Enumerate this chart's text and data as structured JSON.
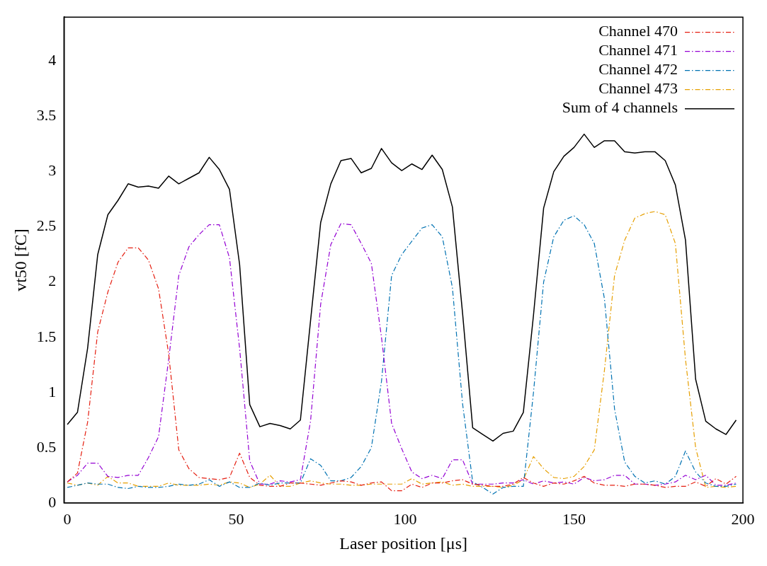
{
  "chart_data": {
    "type": "line",
    "xlabel": "Laser position [μs]",
    "ylabel": "vt50 [fC]",
    "x": [
      0,
      3,
      6,
      9,
      12,
      15,
      18,
      21,
      24,
      27,
      30,
      33,
      36,
      39,
      42,
      45,
      48,
      51,
      54,
      57,
      60,
      63,
      66,
      69,
      72,
      75,
      78,
      81,
      84,
      87,
      90,
      93,
      96,
      99,
      102,
      105,
      108,
      111,
      114,
      117,
      120,
      123,
      126,
      129,
      132,
      135,
      138,
      141,
      144,
      147,
      150,
      153,
      156,
      159,
      162,
      165,
      168,
      171,
      174,
      177,
      180,
      183,
      186,
      189,
      192,
      195,
      198
    ],
    "xlim": [
      -1,
      200
    ],
    "xticks": [
      0,
      50,
      100,
      150,
      200
    ],
    "ylim": [
      0,
      4.4
    ],
    "yticks": [
      0,
      0.5,
      1,
      1.5,
      2,
      2.5,
      3,
      3.5,
      4
    ],
    "legend": "top right",
    "marker": "none",
    "series": [
      {
        "name": "Channel 470",
        "color": "#e51e10",
        "line_style": "dashed",
        "values": [
          0.19,
          0.27,
          0.73,
          1.55,
          1.91,
          2.18,
          2.31,
          2.31,
          2.2,
          1.94,
          1.35,
          0.48,
          0.31,
          0.23,
          0.22,
          0.21,
          0.23,
          0.45,
          0.23,
          0.16,
          0.15,
          0.15,
          0.18,
          0.18,
          0.17,
          0.16,
          0.18,
          0.2,
          0.19,
          0.16,
          0.18,
          0.19,
          0.11,
          0.11,
          0.17,
          0.14,
          0.18,
          0.18,
          0.2,
          0.21,
          0.17,
          0.16,
          0.15,
          0.15,
          0.17,
          0.23,
          0.18,
          0.15,
          0.18,
          0.17,
          0.2,
          0.24,
          0.18,
          0.16,
          0.16,
          0.15,
          0.17,
          0.17,
          0.16,
          0.14,
          0.15,
          0.15,
          0.19,
          0.15,
          0.22,
          0.17,
          0.24
        ]
      },
      {
        "name": "Channel 471",
        "color": "#9400d3",
        "line_style": "dashed",
        "values": [
          0.19,
          0.25,
          0.36,
          0.36,
          0.24,
          0.23,
          0.25,
          0.25,
          0.41,
          0.6,
          1.3,
          2.06,
          2.32,
          2.43,
          2.52,
          2.52,
          2.22,
          1.4,
          0.38,
          0.17,
          0.17,
          0.2,
          0.19,
          0.21,
          0.74,
          1.8,
          2.34,
          2.53,
          2.52,
          2.35,
          2.17,
          1.5,
          0.72,
          0.49,
          0.28,
          0.22,
          0.25,
          0.22,
          0.39,
          0.39,
          0.17,
          0.17,
          0.17,
          0.18,
          0.18,
          0.21,
          0.17,
          0.2,
          0.18,
          0.19,
          0.17,
          0.23,
          0.2,
          0.21,
          0.25,
          0.25,
          0.17,
          0.17,
          0.16,
          0.17,
          0.19,
          0.25,
          0.21,
          0.25,
          0.16,
          0.16,
          0.18
        ]
      },
      {
        "name": "Channel 472",
        "color": "#0072b2",
        "line_style": "dashed",
        "values": [
          0.14,
          0.16,
          0.18,
          0.17,
          0.17,
          0.14,
          0.13,
          0.15,
          0.14,
          0.14,
          0.15,
          0.17,
          0.16,
          0.17,
          0.21,
          0.15,
          0.19,
          0.14,
          0.14,
          0.18,
          0.16,
          0.18,
          0.18,
          0.18,
          0.4,
          0.34,
          0.2,
          0.2,
          0.23,
          0.33,
          0.5,
          1.1,
          2.06,
          2.25,
          2.37,
          2.49,
          2.52,
          2.41,
          1.95,
          0.9,
          0.19,
          0.14,
          0.08,
          0.14,
          0.15,
          0.15,
          1.0,
          2.0,
          2.41,
          2.56,
          2.6,
          2.52,
          2.35,
          1.85,
          0.85,
          0.37,
          0.24,
          0.18,
          0.2,
          0.17,
          0.24,
          0.47,
          0.28,
          0.18,
          0.15,
          0.15,
          0.17
        ]
      },
      {
        "name": "Channel 473",
        "color": "#e69f00",
        "line_style": "dashed",
        "values": [
          0.18,
          0.16,
          0.18,
          0.16,
          0.24,
          0.18,
          0.18,
          0.15,
          0.15,
          0.15,
          0.18,
          0.16,
          0.16,
          0.16,
          0.17,
          0.16,
          0.19,
          0.18,
          0.14,
          0.17,
          0.25,
          0.15,
          0.15,
          0.18,
          0.2,
          0.18,
          0.17,
          0.17,
          0.16,
          0.16,
          0.17,
          0.17,
          0.17,
          0.17,
          0.22,
          0.17,
          0.18,
          0.19,
          0.16,
          0.17,
          0.15,
          0.15,
          0.15,
          0.14,
          0.16,
          0.21,
          0.42,
          0.31,
          0.23,
          0.22,
          0.24,
          0.33,
          0.48,
          1.2,
          2.06,
          2.38,
          2.58,
          2.62,
          2.64,
          2.61,
          2.35,
          1.3,
          0.5,
          0.14,
          0.15,
          0.14,
          0.15
        ]
      },
      {
        "name": "Sum of 4 channels",
        "color": "#000000",
        "line_style": "solid",
        "values": [
          0.71,
          0.82,
          1.4,
          2.25,
          2.61,
          2.74,
          2.89,
          2.86,
          2.87,
          2.85,
          2.96,
          2.89,
          2.94,
          2.99,
          3.13,
          3.02,
          2.84,
          2.16,
          0.89,
          0.69,
          0.72,
          0.7,
          0.67,
          0.75,
          1.65,
          2.54,
          2.89,
          3.1,
          3.12,
          2.99,
          3.03,
          3.21,
          3.08,
          3.01,
          3.07,
          3.02,
          3.15,
          3.02,
          2.68,
          1.72,
          0.68,
          0.62,
          0.56,
          0.63,
          0.65,
          0.82,
          1.7,
          2.67,
          3.0,
          3.14,
          3.22,
          3.34,
          3.22,
          3.28,
          3.28,
          3.18,
          3.17,
          3.18,
          3.18,
          3.1,
          2.88,
          2.38,
          1.12,
          0.74,
          0.67,
          0.62,
          0.75
        ]
      }
    ]
  }
}
